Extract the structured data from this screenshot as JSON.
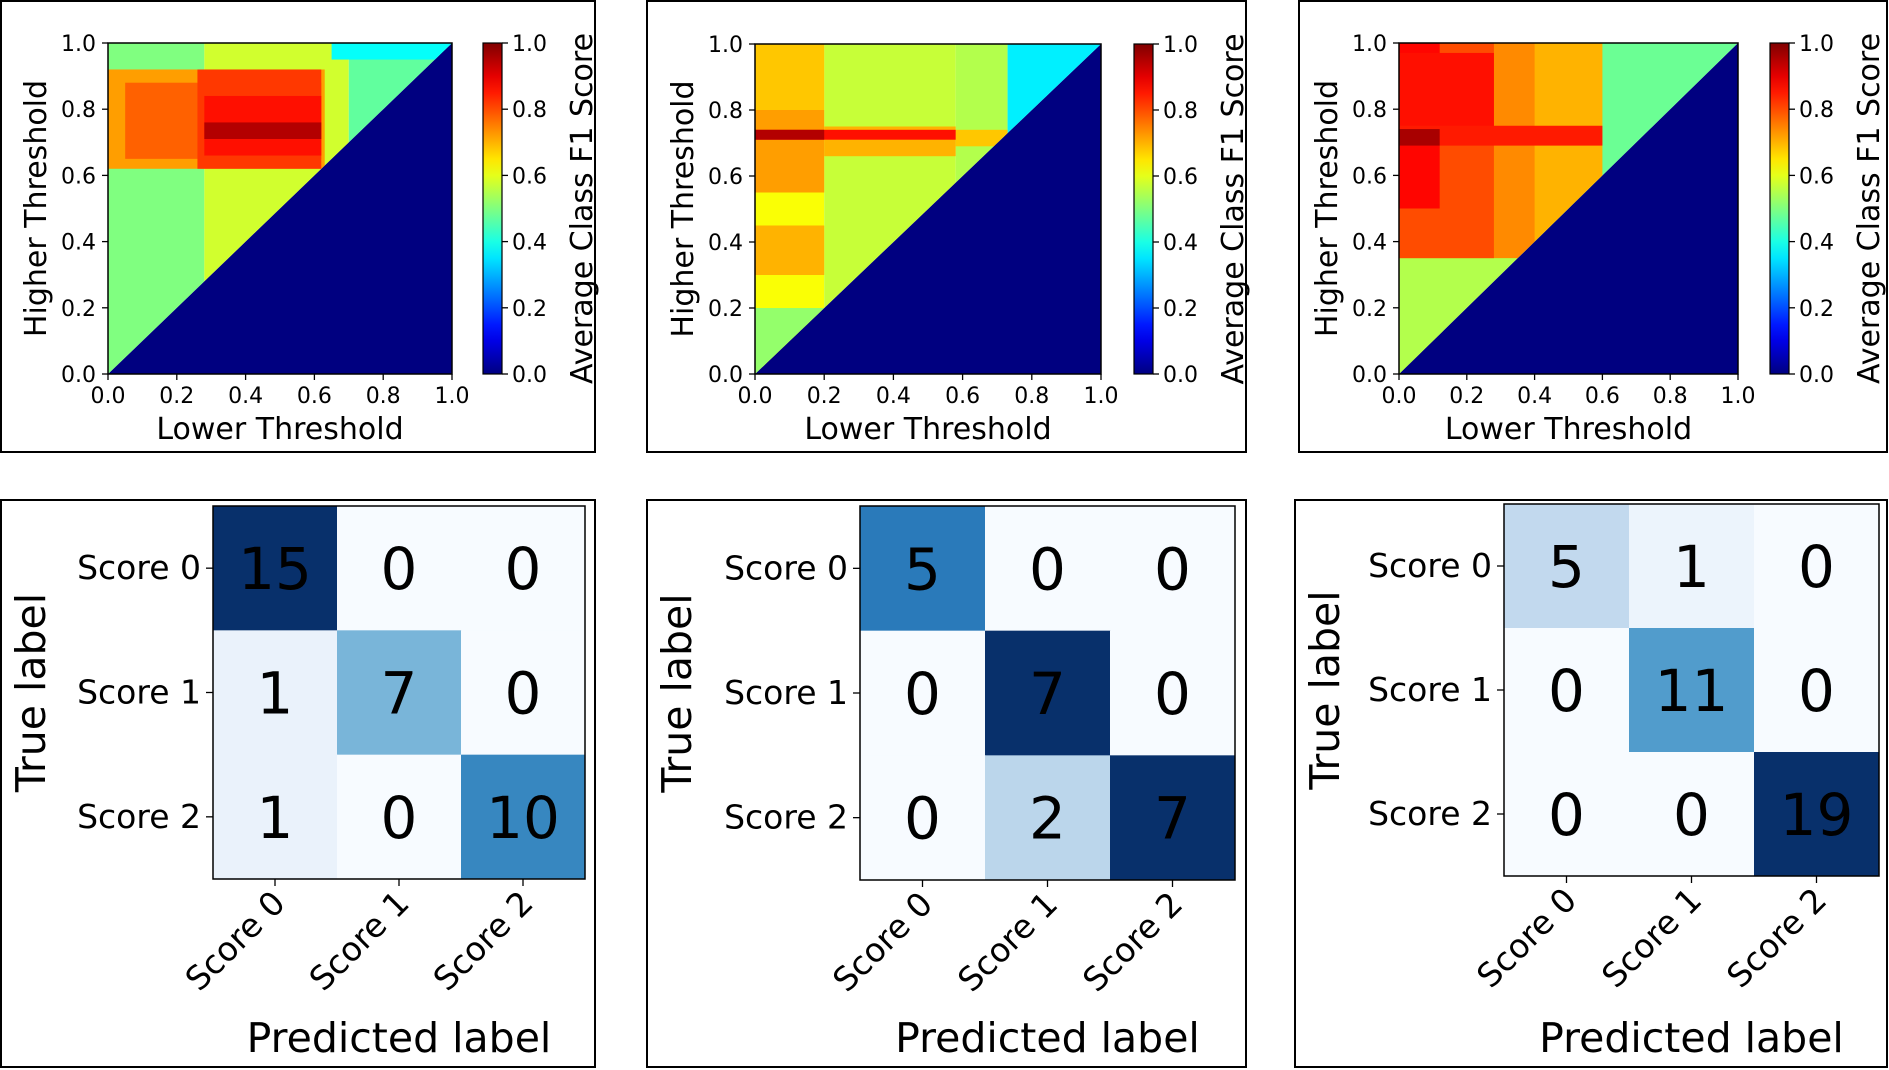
{
  "chart_data": [
    {
      "type": "heatmap",
      "panel": "heatmap-1",
      "xlabel": "Lower Threshold",
      "ylabel": "Higher Threshold",
      "colorbar_label": "Average Class F1 Score",
      "x_ticks": [
        "0.0",
        "0.2",
        "0.4",
        "0.6",
        "0.8",
        "1.0"
      ],
      "y_ticks": [
        "0.0",
        "0.2",
        "0.4",
        "0.6",
        "0.8",
        "1.0"
      ],
      "colorbar_ticks": [
        "0.0",
        "0.2",
        "0.4",
        "0.6",
        "0.8",
        "1.0"
      ],
      "xlim": [
        0,
        1
      ],
      "ylim": [
        0,
        1
      ],
      "clim": [
        0,
        1
      ],
      "colormap": "jet",
      "region_below_diagonal_value": 0.0,
      "blocks": [
        {
          "x": [
            0.0,
            0.28
          ],
          "y": [
            0.0,
            1.0
          ],
          "value": 0.5
        },
        {
          "x": [
            0.28,
            0.7
          ],
          "y": [
            0.0,
            1.0
          ],
          "value": 0.58
        },
        {
          "x": [
            0.7,
            1.0
          ],
          "y": [
            0.0,
            1.0
          ],
          "value": 0.47
        },
        {
          "x": [
            0.0,
            0.63
          ],
          "y": [
            0.62,
            0.92
          ],
          "value": 0.72
        },
        {
          "x": [
            0.05,
            0.62
          ],
          "y": [
            0.65,
            0.88
          ],
          "value": 0.78
        },
        {
          "x": [
            0.26,
            0.62
          ],
          "y": [
            0.62,
            0.92
          ],
          "value": 0.82
        },
        {
          "x": [
            0.28,
            0.62
          ],
          "y": [
            0.66,
            0.84
          ],
          "value": 0.86
        },
        {
          "x": [
            0.28,
            0.62
          ],
          "y": [
            0.71,
            0.76
          ],
          "value": 0.95
        },
        {
          "x": [
            0.65,
            1.0
          ],
          "y": [
            0.95,
            1.0
          ],
          "value": 0.38
        }
      ]
    },
    {
      "type": "heatmap",
      "panel": "heatmap-2",
      "xlabel": "Lower Threshold",
      "ylabel": "Higher Threshold",
      "colorbar_label": "Average Class F1 Score",
      "x_ticks": [
        "0.0",
        "0.2",
        "0.4",
        "0.6",
        "0.8",
        "1.0"
      ],
      "y_ticks": [
        "0.0",
        "0.2",
        "0.4",
        "0.6",
        "0.8",
        "1.0"
      ],
      "colorbar_ticks": [
        "0.0",
        "0.2",
        "0.4",
        "0.6",
        "0.8",
        "1.0"
      ],
      "xlim": [
        0,
        1
      ],
      "ylim": [
        0,
        1
      ],
      "clim": [
        0,
        1
      ],
      "colormap": "jet",
      "region_below_diagonal_value": 0.0,
      "blocks": [
        {
          "x": [
            0.0,
            0.2
          ],
          "y": [
            0.0,
            1.0
          ],
          "value": 0.62
        },
        {
          "x": [
            0.2,
            0.58
          ],
          "y": [
            0.0,
            1.0
          ],
          "value": 0.57
        },
        {
          "x": [
            0.58,
            0.73
          ],
          "y": [
            0.0,
            1.0
          ],
          "value": 0.55
        },
        {
          "x": [
            0.73,
            1.0
          ],
          "y": [
            0.0,
            1.0
          ],
          "value": 0.36
        },
        {
          "x": [
            0.0,
            0.2
          ],
          "y": [
            0.8,
            1.0
          ],
          "value": 0.68
        },
        {
          "x": [
            0.0,
            0.2
          ],
          "y": [
            0.55,
            0.8
          ],
          "value": 0.72
        },
        {
          "x": [
            0.0,
            0.2
          ],
          "y": [
            0.3,
            0.45
          ],
          "value": 0.7
        },
        {
          "x": [
            0.0,
            0.2
          ],
          "y": [
            0.0,
            0.2
          ],
          "value": 0.52
        },
        {
          "x": [
            0.2,
            0.58
          ],
          "y": [
            0.66,
            0.75
          ],
          "value": 0.7
        },
        {
          "x": [
            0.58,
            0.73
          ],
          "y": [
            0.69,
            0.74
          ],
          "value": 0.68
        },
        {
          "x": [
            0.0,
            0.58
          ],
          "y": [
            0.71,
            0.74
          ],
          "value": 0.86
        },
        {
          "x": [
            0.0,
            0.2
          ],
          "y": [
            0.71,
            0.74
          ],
          "value": 0.95
        }
      ]
    },
    {
      "type": "heatmap",
      "panel": "heatmap-3",
      "xlabel": "Lower Threshold",
      "ylabel": "Higher Threshold",
      "colorbar_label": "Average Class F1 Score",
      "x_ticks": [
        "0.0",
        "0.2",
        "0.4",
        "0.6",
        "0.8",
        "1.0"
      ],
      "y_ticks": [
        "0.0",
        "0.2",
        "0.4",
        "0.6",
        "0.8",
        "1.0"
      ],
      "colorbar_ticks": [
        "0.0",
        "0.2",
        "0.4",
        "0.6",
        "0.8",
        "1.0"
      ],
      "xlim": [
        0,
        1
      ],
      "ylim": [
        0,
        1
      ],
      "clim": [
        0,
        1
      ],
      "colormap": "jet",
      "region_below_diagonal_value": 0.0,
      "blocks": [
        {
          "x": [
            0.0,
            0.13
          ],
          "y": [
            0.0,
            0.4
          ],
          "value": 0.58
        },
        {
          "x": [
            0.0,
            0.4
          ],
          "y": [
            0.0,
            1.0
          ],
          "value": 0.55
        },
        {
          "x": [
            0.4,
            1.0
          ],
          "y": [
            0.0,
            1.0
          ],
          "value": 0.48
        },
        {
          "x": [
            0.0,
            0.6
          ],
          "y": [
            0.4,
            1.0
          ],
          "value": 0.7
        },
        {
          "x": [
            0.0,
            0.4
          ],
          "y": [
            0.35,
            1.0
          ],
          "value": 0.74
        },
        {
          "x": [
            0.0,
            0.28
          ],
          "y": [
            0.35,
            1.0
          ],
          "value": 0.8
        },
        {
          "x": [
            0.0,
            0.12
          ],
          "y": [
            0.5,
            1.0
          ],
          "value": 0.87
        },
        {
          "x": [
            0.0,
            0.28
          ],
          "y": [
            0.72,
            0.97
          ],
          "value": 0.86
        },
        {
          "x": [
            0.0,
            0.6
          ],
          "y": [
            0.69,
            0.75
          ],
          "value": 0.85
        },
        {
          "x": [
            0.0,
            0.12
          ],
          "y": [
            0.69,
            0.74
          ],
          "value": 0.96
        }
      ]
    },
    {
      "type": "heatmap",
      "panel": "confusion-matrix-1",
      "xlabel": "Predicted label",
      "ylabel": "True label",
      "categories": [
        "Score 0",
        "Score 1",
        "Score 2"
      ],
      "matrix": [
        [
          15,
          0,
          0
        ],
        [
          1,
          7,
          0
        ],
        [
          1,
          0,
          10
        ]
      ],
      "colormap": "Blues",
      "vmax": 15
    },
    {
      "type": "heatmap",
      "panel": "confusion-matrix-2",
      "xlabel": "Predicted label",
      "ylabel": "True label",
      "categories": [
        "Score 0",
        "Score 1",
        "Score 2"
      ],
      "matrix": [
        [
          5,
          0,
          0
        ],
        [
          0,
          7,
          0
        ],
        [
          0,
          2,
          7
        ]
      ],
      "colormap": "Blues",
      "vmax": 7
    },
    {
      "type": "heatmap",
      "panel": "confusion-matrix-3",
      "xlabel": "Predicted label",
      "ylabel": "True label",
      "categories": [
        "Score 0",
        "Score 1",
        "Score 2"
      ],
      "matrix": [
        [
          5,
          1,
          0
        ],
        [
          0,
          11,
          0
        ],
        [
          0,
          0,
          19
        ]
      ],
      "colormap": "Blues",
      "vmax": 19
    }
  ]
}
